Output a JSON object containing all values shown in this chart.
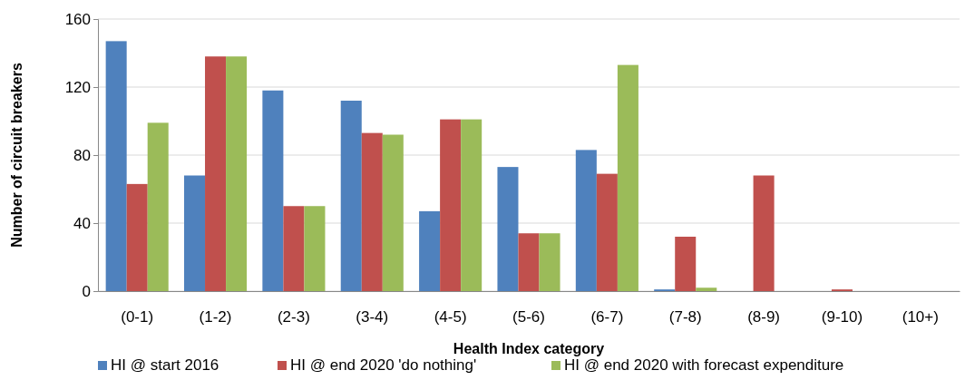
{
  "chart_data": {
    "type": "bar",
    "xlabel": "Health Index  category",
    "ylabel": "Number of circuit breakers",
    "categories": [
      "(0-1)",
      "(1-2)",
      "(2-3)",
      "(3-4)",
      "(4-5)",
      "(5-6)",
      "(6-7)",
      "(7-8)",
      "(8-9)",
      "(9-10)",
      "(10+)"
    ],
    "series": [
      {
        "name": "HI @ start 2016",
        "color": "#4f81bd",
        "values": [
          147,
          68,
          118,
          112,
          47,
          73,
          83,
          1,
          0,
          0,
          0
        ]
      },
      {
        "name": "HI @ end 2020 'do nothing'",
        "color": "#c0504d",
        "values": [
          63,
          138,
          50,
          93,
          101,
          34,
          69,
          32,
          68,
          1,
          0
        ]
      },
      {
        "name": "HI @ end 2020 with forecast expenditure",
        "color": "#9bbb59",
        "values": [
          99,
          138,
          50,
          92,
          101,
          34,
          133,
          2,
          0,
          0,
          0
        ]
      }
    ],
    "ylim": [
      0,
      160
    ],
    "yticks": [
      0,
      40,
      80,
      120,
      160
    ],
    "grid": "y",
    "legend": "bottom"
  }
}
